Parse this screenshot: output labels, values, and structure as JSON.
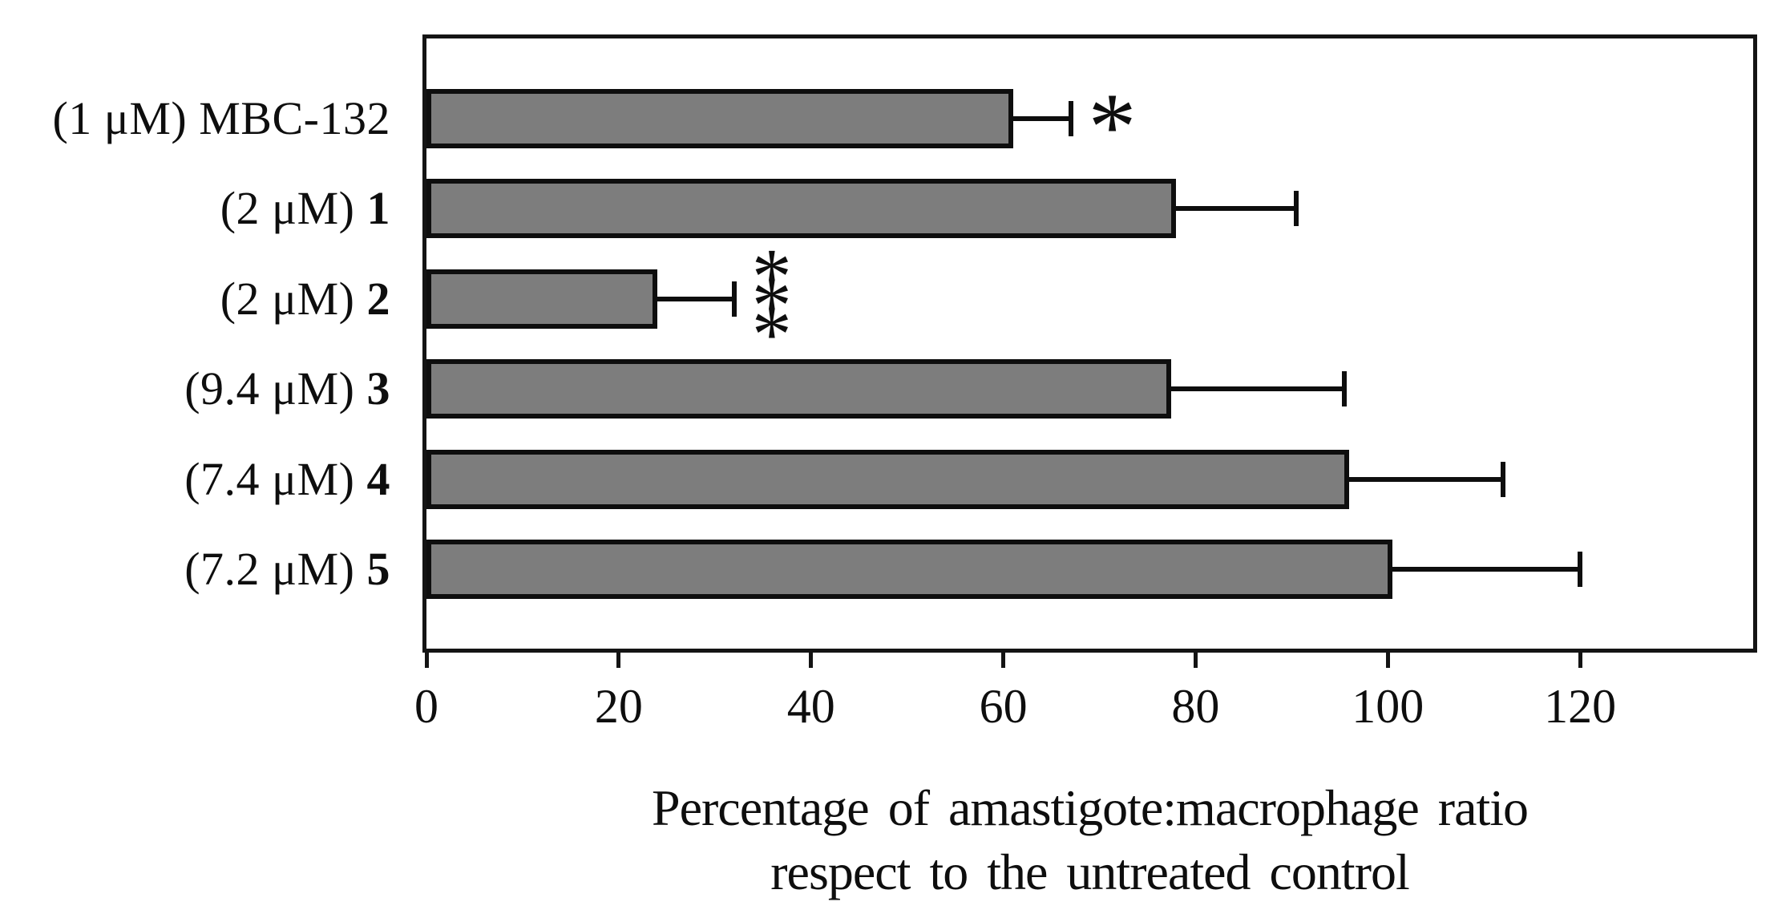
{
  "chart_data": {
    "type": "bar",
    "orientation": "horizontal",
    "title": "",
    "categories": [
      {
        "prefix": "(1 μM) ",
        "name": "MBC-132",
        "bold_name": false
      },
      {
        "prefix": "(2 μM) ",
        "name": "1",
        "bold_name": true
      },
      {
        "prefix": "(2 μM) ",
        "name": "2",
        "bold_name": true
      },
      {
        "prefix": "(9.4 μM) ",
        "name": "3",
        "bold_name": true
      },
      {
        "prefix": "(7.4 μM) ",
        "name": "4",
        "bold_name": true
      },
      {
        "prefix": "(7.2 μM) ",
        "name": "5",
        "bold_name": true
      }
    ],
    "values": [
      61,
      78,
      24,
      77.5,
      96,
      100.5
    ],
    "errors_plus": [
      6,
      12.5,
      8,
      18,
      16,
      19.5
    ],
    "significance": [
      "*",
      "",
      "***",
      "",
      "",
      ""
    ],
    "xticks": [
      0,
      20,
      40,
      60,
      80,
      100,
      120
    ],
    "xlim": [
      0,
      138
    ],
    "xlabel_lines": [
      "Percentage of amastigote:macrophage ratio",
      "respect to the untreated control"
    ],
    "grid": false,
    "legend": false,
    "bar_color": "#7d7d7d",
    "line_color": "#0e0e0e"
  }
}
